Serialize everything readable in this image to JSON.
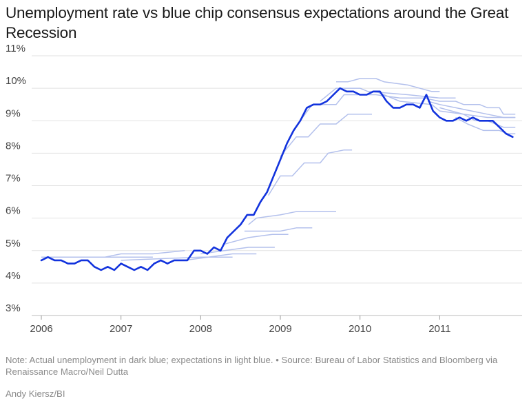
{
  "chart_data": {
    "type": "line",
    "title": "Unemployment rate vs blue chip consensus expectations around the Great Recession",
    "xlabel": "",
    "ylabel": "",
    "xlim": [
      2006.0,
      2012.0
    ],
    "ylim": [
      3,
      11
    ],
    "x_ticks": [
      {
        "value": 2006,
        "label": "2006"
      },
      {
        "value": 2007,
        "label": "2007"
      },
      {
        "value": 2008,
        "label": "2008"
      },
      {
        "value": 2009,
        "label": "2009"
      },
      {
        "value": 2010,
        "label": "2010"
      },
      {
        "value": 2011,
        "label": "2011"
      }
    ],
    "y_ticks": [
      {
        "value": 3,
        "label": "3%"
      },
      {
        "value": 4,
        "label": "4%"
      },
      {
        "value": 5,
        "label": "5%"
      },
      {
        "value": 6,
        "label": "6%"
      },
      {
        "value": 7,
        "label": "7%"
      },
      {
        "value": 8,
        "label": "8%"
      },
      {
        "value": 9,
        "label": "9%"
      },
      {
        "value": 10,
        "label": "10%"
      },
      {
        "value": 11,
        "label": "11%"
      }
    ],
    "grid": true,
    "series_colors": {
      "actual": "#1233dd",
      "expectation": "#b3c0ec"
    },
    "actual": {
      "name": "Actual unemployment",
      "start": 2006.0,
      "step": 0.08333,
      "values": [
        4.7,
        4.8,
        4.7,
        4.7,
        4.6,
        4.6,
        4.7,
        4.7,
        4.5,
        4.4,
        4.5,
        4.4,
        4.6,
        4.5,
        4.4,
        4.5,
        4.4,
        4.6,
        4.7,
        4.6,
        4.7,
        4.7,
        4.7,
        5.0,
        5.0,
        4.9,
        5.1,
        5.0,
        5.4,
        5.6,
        5.8,
        6.1,
        6.1,
        6.5,
        6.8,
        7.3,
        7.8,
        8.3,
        8.7,
        9.0,
        9.4,
        9.5,
        9.5,
        9.6,
        9.8,
        10.0,
        9.9,
        9.9,
        9.8,
        9.8,
        9.9,
        9.9,
        9.6,
        9.4,
        9.4,
        9.5,
        9.5,
        9.4,
        9.8,
        9.3,
        9.1,
        9.0,
        9.0,
        9.1,
        9.0,
        9.1,
        9.0,
        9.0,
        9.0,
        8.8,
        8.6,
        8.5
      ]
    },
    "expectations": [
      {
        "name": "Expectation 2006",
        "points": [
          [
            2006.0,
            4.8
          ],
          [
            2007.4,
            4.8
          ]
        ]
      },
      {
        "name": "Expectation 2007",
        "points": [
          [
            2007.0,
            4.7
          ],
          [
            2008.0,
            4.8
          ],
          [
            2008.4,
            4.8
          ]
        ]
      },
      {
        "name": "Expectation 2007b",
        "points": [
          [
            2006.0,
            4.8
          ],
          [
            2006.8,
            4.8
          ],
          [
            2007.0,
            4.9
          ],
          [
            2007.4,
            4.9
          ],
          [
            2007.8,
            5.0
          ]
        ]
      },
      {
        "name": "Expectation 2008",
        "points": [
          [
            2007.8,
            4.7
          ],
          [
            2008.4,
            4.9
          ],
          [
            2008.7,
            4.9
          ]
        ]
      },
      {
        "name": "Expectation 2008b",
        "points": [
          [
            2008.0,
            4.9
          ],
          [
            2008.3,
            5.0
          ],
          [
            2008.6,
            5.1
          ],
          [
            2008.93,
            5.1
          ]
        ]
      },
      {
        "name": "Expectation 2008c",
        "points": [
          [
            2008.3,
            5.2
          ],
          [
            2008.6,
            5.4
          ],
          [
            2008.9,
            5.5
          ],
          [
            2009.1,
            5.5
          ]
        ]
      },
      {
        "name": "Expectation 2008d",
        "points": [
          [
            2008.55,
            5.6
          ],
          [
            2009.0,
            5.6
          ],
          [
            2009.2,
            5.7
          ],
          [
            2009.4,
            5.7
          ]
        ]
      },
      {
        "name": "Expectation 2008e",
        "points": [
          [
            2008.6,
            5.8
          ],
          [
            2008.7,
            6.0
          ],
          [
            2009.0,
            6.1
          ],
          [
            2009.2,
            6.2
          ],
          [
            2009.7,
            6.2
          ]
        ]
      },
      {
        "name": "Expectation 2009a",
        "points": [
          [
            2008.85,
            6.7
          ],
          [
            2009.0,
            7.3
          ],
          [
            2009.15,
            7.3
          ],
          [
            2009.3,
            7.7
          ],
          [
            2009.5,
            7.7
          ],
          [
            2009.6,
            8.0
          ],
          [
            2009.8,
            8.1
          ],
          [
            2009.9,
            8.1
          ]
        ]
      },
      {
        "name": "Expectation 2009b",
        "points": [
          [
            2009.0,
            7.9
          ],
          [
            2009.2,
            8.5
          ],
          [
            2009.35,
            8.5
          ],
          [
            2009.5,
            8.9
          ],
          [
            2009.7,
            8.9
          ],
          [
            2009.85,
            9.2
          ],
          [
            2010.15,
            9.2
          ]
        ]
      },
      {
        "name": "Expectation 2009c",
        "points": [
          [
            2009.25,
            9.0
          ],
          [
            2009.4,
            9.5
          ],
          [
            2009.7,
            9.5
          ],
          [
            2009.8,
            9.8
          ],
          [
            2010.2,
            9.8
          ],
          [
            2010.5,
            9.7
          ],
          [
            2010.8,
            9.7
          ]
        ]
      },
      {
        "name": "Expectation 2009d",
        "points": [
          [
            2009.5,
            9.6
          ],
          [
            2009.7,
            10.0
          ],
          [
            2010.0,
            10.0
          ],
          [
            2010.1,
            9.9
          ],
          [
            2010.6,
            9.8
          ],
          [
            2011.0,
            9.7
          ],
          [
            2011.2,
            9.7
          ]
        ]
      },
      {
        "name": "Expectation 2009e",
        "points": [
          [
            2009.7,
            10.2
          ],
          [
            2009.85,
            10.2
          ],
          [
            2010.0,
            10.3
          ],
          [
            2010.2,
            10.3
          ],
          [
            2010.3,
            10.2
          ],
          [
            2010.6,
            10.1
          ],
          [
            2010.9,
            9.9
          ],
          [
            2011.0,
            9.9
          ]
        ]
      },
      {
        "name": "Expectation 2010a",
        "points": [
          [
            2010.2,
            9.9
          ],
          [
            2010.5,
            9.6
          ],
          [
            2010.9,
            9.5
          ],
          [
            2011.0,
            9.3
          ],
          [
            2011.3,
            9.2
          ],
          [
            2011.6,
            9.1
          ],
          [
            2011.95,
            9.1
          ]
        ]
      },
      {
        "name": "Expectation 2010b",
        "points": [
          [
            2010.8,
            9.7
          ],
          [
            2011.0,
            9.6
          ],
          [
            2011.2,
            9.6
          ],
          [
            2011.3,
            9.5
          ],
          [
            2011.5,
            9.5
          ],
          [
            2011.6,
            9.4
          ],
          [
            2011.75,
            9.4
          ],
          [
            2011.8,
            9.2
          ],
          [
            2011.95,
            9.2
          ]
        ]
      },
      {
        "name": "Expectation 2010c",
        "points": [
          [
            2010.85,
            9.6
          ],
          [
            2011.0,
            9.5
          ],
          [
            2011.2,
            9.4
          ],
          [
            2011.4,
            9.3
          ],
          [
            2011.6,
            9.2
          ],
          [
            2011.8,
            9.1
          ],
          [
            2011.95,
            9.1
          ]
        ]
      },
      {
        "name": "Expectation 2011a",
        "points": [
          [
            2011.0,
            9.4
          ],
          [
            2011.3,
            9.2
          ],
          [
            2011.45,
            9.0
          ],
          [
            2011.6,
            9.0
          ],
          [
            2011.8,
            8.8
          ],
          [
            2011.95,
            8.8
          ]
        ]
      },
      {
        "name": "Expectation 2011b",
        "points": [
          [
            2011.2,
            9.1
          ],
          [
            2011.35,
            8.9
          ],
          [
            2011.55,
            8.7
          ],
          [
            2011.75,
            8.7
          ],
          [
            2011.85,
            8.6
          ],
          [
            2011.95,
            8.6
          ]
        ]
      }
    ]
  },
  "header": {
    "title": "Unemployment rate vs blue chip consensus expectations around the Great Recession"
  },
  "footer": {
    "note": "Note: Actual unemployment in dark blue; expectations in light blue. • Source: Bureau of Labor Statistics and Bloomberg via Renaissance Macro/Neil Dutta",
    "credit": "Andy Kiersz/BI"
  }
}
